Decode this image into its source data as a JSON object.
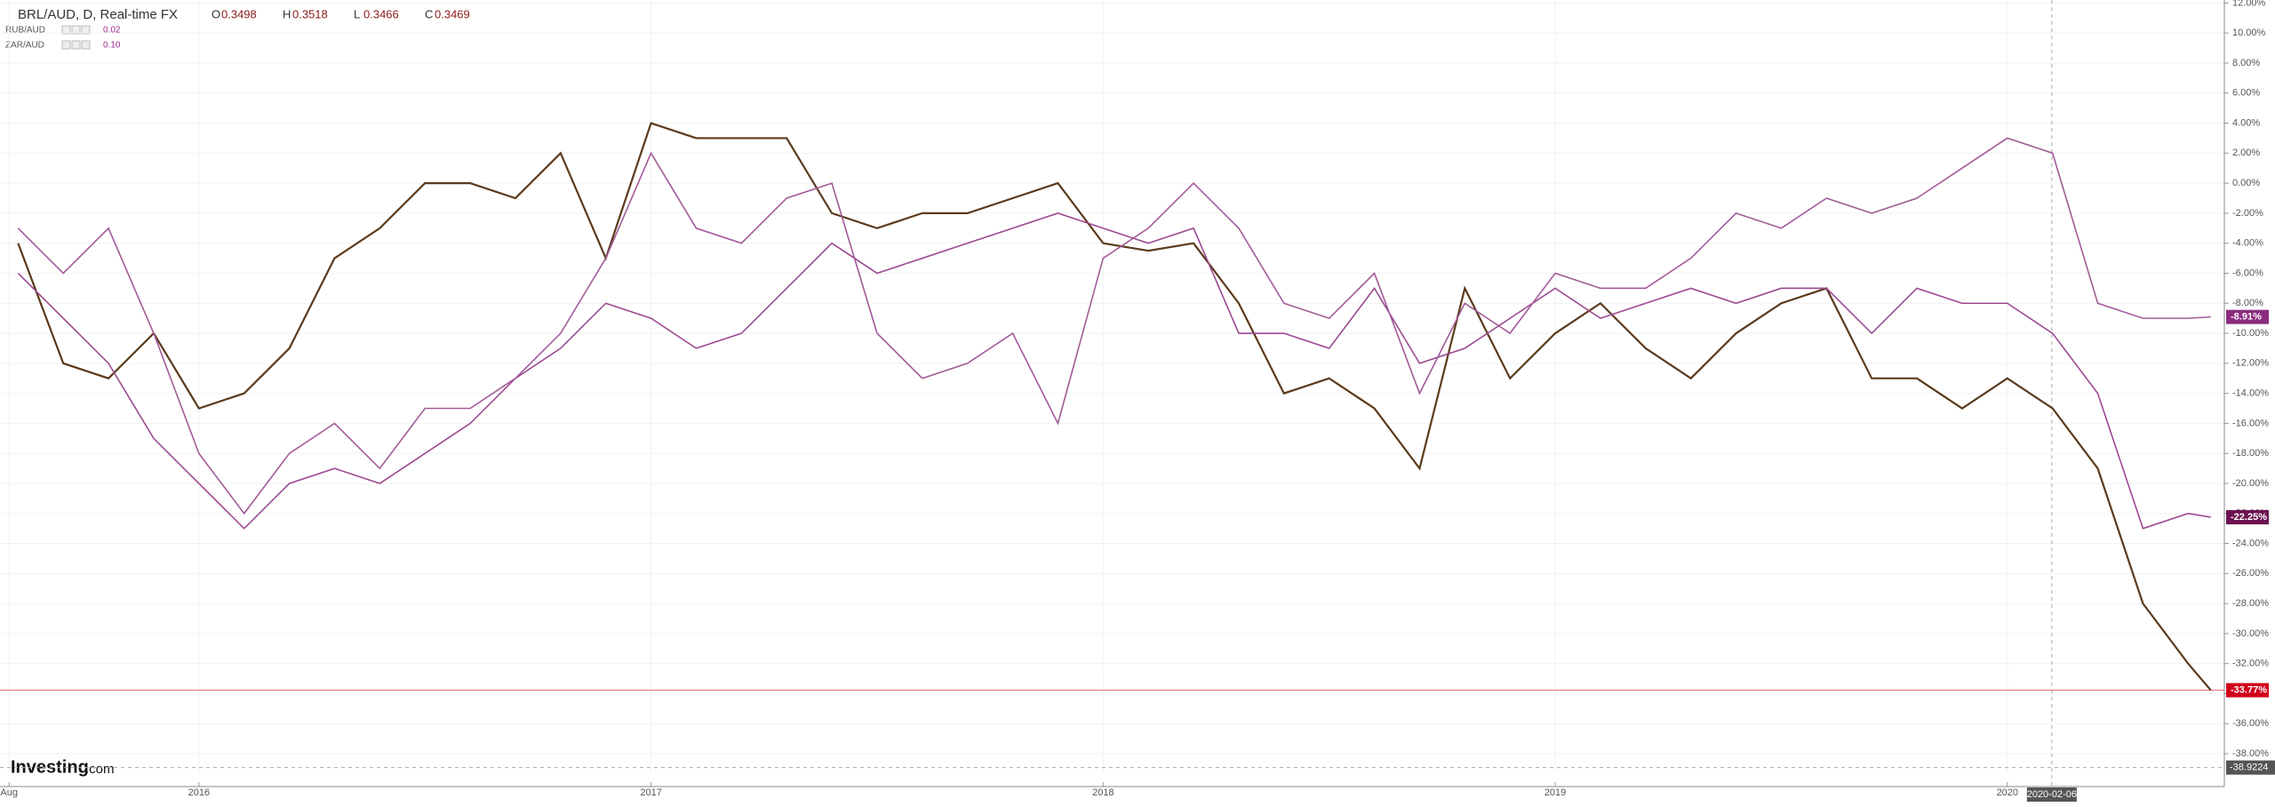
{
  "chart_data": {
    "type": "line",
    "title": "BRL/AUD, D, Real-time FX",
    "ohlc": [
      {
        "label": "O",
        "value": 0.3498
      },
      {
        "label": "H",
        "value": 0.3518
      },
      {
        "label": "L",
        "value": 0.3466
      },
      {
        "label": "C",
        "value": 0.3469
      }
    ],
    "overlays": [
      {
        "name": "RUB/AUD",
        "change": "0.02"
      },
      {
        "name": "ZAR/AUD",
        "change": "0.10"
      }
    ],
    "watermark": {
      "brand": "Investing",
      "suffix": ".com"
    },
    "x": [
      2015.6,
      2015.7,
      2015.8,
      2015.9,
      2016.0,
      2016.1,
      2016.2,
      2016.3,
      2016.4,
      2016.5,
      2016.6,
      2016.7,
      2016.8,
      2016.9,
      2017.0,
      2017.1,
      2017.2,
      2017.3,
      2017.4,
      2017.5,
      2017.6,
      2017.7,
      2017.8,
      2017.9,
      2018.0,
      2018.1,
      2018.2,
      2018.3,
      2018.4,
      2018.5,
      2018.6,
      2018.7,
      2018.8,
      2018.9,
      2019.0,
      2019.1,
      2019.2,
      2019.3,
      2019.4,
      2019.5,
      2019.6,
      2019.7,
      2019.8,
      2019.9,
      2020.0,
      2020.1,
      2020.2,
      2020.3,
      2020.4,
      2020.45
    ],
    "xlim": [
      2015.56,
      2020.48
    ],
    "xticks": [
      {
        "value": 2015.58,
        "label": "Aug"
      },
      {
        "value": 2016,
        "label": "2016"
      },
      {
        "value": 2017,
        "label": "2017"
      },
      {
        "value": 2018,
        "label": "2018"
      },
      {
        "value": 2019,
        "label": "2019"
      },
      {
        "value": 2020,
        "label": "2020"
      }
    ],
    "ylim": [
      -39.3,
      12.2
    ],
    "yticks": [
      {
        "value": 12,
        "label": "12.00%"
      },
      {
        "value": 10,
        "label": "10.00%"
      },
      {
        "value": 8,
        "label": "8.00%"
      },
      {
        "value": 6,
        "label": "6.00%"
      },
      {
        "value": 4,
        "label": "4.00%"
      },
      {
        "value": 2,
        "label": "2.00%"
      },
      {
        "value": 0,
        "label": "0.00%"
      },
      {
        "value": -2,
        "label": "-2.00%"
      },
      {
        "value": -4,
        "label": "-4.00%"
      },
      {
        "value": -6,
        "label": "-6.00%"
      },
      {
        "value": -8,
        "label": "-8.00%"
      },
      {
        "value": -10,
        "label": "-10.00%"
      },
      {
        "value": -12,
        "label": "-12.00%"
      },
      {
        "value": -14,
        "label": "-14.00%"
      },
      {
        "value": -16,
        "label": "-16.00%"
      },
      {
        "value": -18,
        "label": "-18.00%"
      },
      {
        "value": -20,
        "label": "-20.00%"
      },
      {
        "value": -22,
        "label": "-22.00%"
      },
      {
        "value": -24,
        "label": "-24.00%"
      },
      {
        "value": -26,
        "label": "-26.00%"
      },
      {
        "value": -28,
        "label": "-28.00%"
      },
      {
        "value": -30,
        "label": "-30.00%"
      },
      {
        "value": -32,
        "label": "-32.00%"
      },
      {
        "value": -34,
        "label": "-34.00%"
      },
      {
        "value": -36,
        "label": "-36.00%"
      },
      {
        "value": -38,
        "label": "-38.00%"
      }
    ],
    "grid": true,
    "crosshair": {
      "x": "2020-02-06",
      "y": -38.9224
    },
    "series": [
      {
        "name": "BRL/AUD",
        "color": "#5b3a1c",
        "label_color": "#d0021b",
        "width": 2.2,
        "values": [
          -4,
          -12,
          -13,
          -10,
          -15,
          -14,
          -11,
          -5,
          -3,
          0,
          0,
          -1,
          2,
          -5,
          4,
          3,
          3,
          3,
          -2,
          -3,
          -2,
          -2,
          -1,
          0,
          -4,
          -4.5,
          -4,
          -8,
          -14,
          -13,
          -15,
          -19,
          -7,
          -13,
          -10,
          -8,
          -11,
          -13,
          -10,
          -8,
          -7,
          -13,
          -13,
          -15,
          -13,
          -15,
          -19,
          -28,
          -32,
          -33.77
        ],
        "value_labels": [
          null,
          null,
          null,
          null,
          null,
          null,
          null,
          null,
          null,
          null,
          null,
          null,
          null,
          null,
          null,
          null,
          null,
          null,
          null,
          null,
          null,
          null,
          null,
          null,
          null,
          null,
          null,
          null,
          null,
          null,
          null,
          null,
          null,
          null,
          null,
          null,
          null,
          null,
          null,
          null,
          null,
          null,
          null,
          null,
          null,
          null,
          null,
          null,
          null,
          "-33.77%"
        ]
      },
      {
        "name": "RUB/AUD",
        "color": "#9c4a8f",
        "label_color": "#6b1350",
        "width": 1.6,
        "values": [
          -6,
          -9,
          -12,
          -17,
          -20,
          -23,
          -20,
          -19,
          -20,
          -18,
          -16,
          -13,
          -11,
          -8,
          -9,
          -11,
          -10,
          -7,
          -4,
          -6,
          -5,
          -4,
          -3,
          -2,
          -3,
          -4,
          -3,
          -10,
          -10,
          -11,
          -7,
          -12,
          -11,
          -9,
          -7,
          -9,
          -8,
          -7,
          -8,
          -7,
          -7,
          -10,
          -7,
          -8,
          -8,
          -10,
          -14,
          -23,
          -22,
          -22.25
        ],
        "value_labels": [
          null,
          null,
          null,
          null,
          null,
          null,
          null,
          null,
          null,
          null,
          null,
          null,
          null,
          null,
          null,
          null,
          null,
          null,
          null,
          null,
          null,
          null,
          null,
          null,
          null,
          null,
          null,
          null,
          null,
          null,
          null,
          null,
          null,
          null,
          null,
          null,
          null,
          null,
          null,
          null,
          null,
          null,
          null,
          null,
          null,
          null,
          null,
          null,
          null,
          "-22.25%"
        ]
      },
      {
        "name": "ZAR/AUD",
        "color": "#a35a98",
        "label_color": "#8b2c7e",
        "width": 1.6,
        "values": [
          -3,
          -6,
          -3,
          -10,
          -18,
          -22,
          -18,
          -16,
          -19,
          -15,
          -15,
          -13,
          -10,
          -5,
          2,
          -3,
          -4,
          -1,
          0,
          -10,
          -13,
          -12,
          -10,
          -16,
          -5,
          -3,
          0,
          -3,
          -8,
          -9,
          -6,
          -14,
          -8,
          -10,
          -6,
          -7,
          -7,
          -5,
          -2,
          -3,
          -1,
          -2,
          -1,
          1,
          3,
          2,
          -8,
          -9,
          -9,
          -8.91
        ],
        "value_labels": [
          null,
          null,
          null,
          null,
          null,
          null,
          null,
          null,
          null,
          null,
          null,
          null,
          null,
          null,
          null,
          null,
          null,
          null,
          null,
          null,
          null,
          null,
          null,
          null,
          null,
          null,
          null,
          null,
          null,
          null,
          null,
          null,
          null,
          null,
          null,
          null,
          null,
          null,
          null,
          null,
          null,
          null,
          null,
          null,
          null,
          null,
          null,
          null,
          null,
          "-8.91%"
        ]
      }
    ]
  }
}
